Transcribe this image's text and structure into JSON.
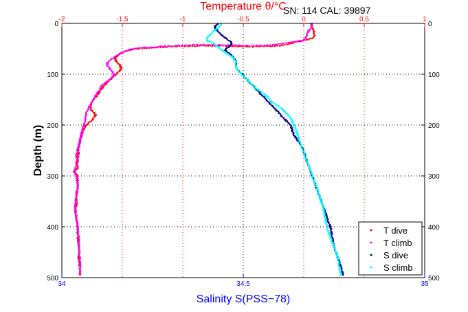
{
  "chart_data": {
    "type": "scatter",
    "title": "Temperature θ/°C",
    "annotation": "SN: 114  CAL: 39897",
    "xlabel": "Salinity S(PSS−78)",
    "ylabel": "Depth (m)",
    "axes": {
      "top_temperature": {
        "label": "Temperature θ/°C",
        "lim": [
          -2,
          1
        ],
        "ticks": [
          -2,
          -1.5,
          -1,
          -0.5,
          0,
          0.5,
          1
        ],
        "tick_labels": [
          "-2",
          "-1.5",
          "-1",
          "-0.5",
          "0",
          "0.5",
          "1"
        ],
        "color": "#ff0000"
      },
      "bottom_salinity": {
        "label": "Salinity S(PSS−78)",
        "lim": [
          34,
          35
        ],
        "ticks": [
          34,
          34.5,
          35
        ],
        "tick_labels": [
          "34",
          "34.5",
          "35"
        ],
        "color": "#0000ff"
      },
      "depth": {
        "label": "Depth (m)",
        "lim": [
          0,
          500
        ],
        "reversed": true,
        "ticks": [
          0,
          100,
          200,
          300,
          400,
          500
        ],
        "tick_labels": [
          "0",
          "100",
          "200",
          "300",
          "400",
          "500"
        ]
      }
    },
    "grid": true,
    "legend_position": "bottom-right",
    "series": [
      {
        "name": "T dive",
        "color": "#ff0000",
        "marker": ".",
        "axis": "temperature",
        "points": [
          [
            0.06,
            0
          ],
          [
            0.07,
            8
          ],
          [
            0.08,
            15
          ],
          [
            0.09,
            22
          ],
          [
            0.08,
            28
          ],
          [
            0.02,
            33
          ],
          [
            -0.05,
            36
          ],
          [
            -0.1,
            39
          ],
          [
            -0.15,
            42
          ],
          [
            -0.2,
            44
          ],
          [
            -0.3,
            45
          ],
          [
            -0.4,
            46
          ],
          [
            -0.55,
            45
          ],
          [
            -0.75,
            44
          ],
          [
            -1.0,
            45
          ],
          [
            -1.2,
            47
          ],
          [
            -1.4,
            50
          ],
          [
            -1.48,
            55
          ],
          [
            -1.52,
            60
          ],
          [
            -1.56,
            68
          ],
          [
            -1.55,
            75
          ],
          [
            -1.52,
            82
          ],
          [
            -1.51,
            90
          ],
          [
            -1.55,
            100
          ],
          [
            -1.6,
            110
          ],
          [
            -1.64,
            120
          ],
          [
            -1.68,
            130
          ],
          [
            -1.7,
            140
          ],
          [
            -1.74,
            150
          ],
          [
            -1.76,
            160
          ],
          [
            -1.76,
            170
          ],
          [
            -1.72,
            180
          ],
          [
            -1.75,
            190
          ],
          [
            -1.8,
            200
          ],
          [
            -1.83,
            215
          ],
          [
            -1.85,
            230
          ],
          [
            -1.86,
            250
          ],
          [
            -1.87,
            270
          ],
          [
            -1.87,
            285
          ],
          [
            -1.9,
            292
          ],
          [
            -1.87,
            300
          ],
          [
            -1.87,
            320
          ],
          [
            -1.88,
            340
          ],
          [
            -1.88,
            360
          ],
          [
            -1.89,
            370
          ],
          [
            -1.88,
            380
          ],
          [
            -1.87,
            400
          ],
          [
            -1.87,
            420
          ],
          [
            -1.86,
            440
          ],
          [
            -1.86,
            460
          ],
          [
            -1.85,
            480
          ],
          [
            -1.85,
            495
          ]
        ]
      },
      {
        "name": "T climb",
        "color": "#ff00ff",
        "marker": ".",
        "axis": "temperature",
        "points": [
          [
            0.07,
            0
          ],
          [
            0.06,
            8
          ],
          [
            0.04,
            15
          ],
          [
            0.03,
            22
          ],
          [
            0.02,
            28
          ],
          [
            0.0,
            33
          ],
          [
            -0.1,
            37
          ],
          [
            -0.2,
            41
          ],
          [
            -0.35,
            44
          ],
          [
            -0.6,
            43
          ],
          [
            -0.85,
            42
          ],
          [
            -1.0,
            43
          ],
          [
            -1.15,
            45
          ],
          [
            -1.35,
            48
          ],
          [
            -1.45,
            52
          ],
          [
            -1.5,
            58
          ],
          [
            -1.56,
            65
          ],
          [
            -1.6,
            72
          ],
          [
            -1.63,
            80
          ],
          [
            -1.6,
            90
          ],
          [
            -1.57,
            100
          ],
          [
            -1.6,
            110
          ],
          [
            -1.66,
            120
          ],
          [
            -1.7,
            135
          ],
          [
            -1.74,
            150
          ],
          [
            -1.78,
            165
          ],
          [
            -1.8,
            180
          ],
          [
            -1.82,
            200
          ],
          [
            -1.84,
            220
          ],
          [
            -1.86,
            240
          ],
          [
            -1.88,
            260
          ],
          [
            -1.88,
            280
          ],
          [
            -1.9,
            290
          ],
          [
            -1.88,
            300
          ],
          [
            -1.87,
            320
          ],
          [
            -1.88,
            340
          ],
          [
            -1.89,
            360
          ],
          [
            -1.88,
            380
          ],
          [
            -1.87,
            400
          ],
          [
            -1.86,
            420
          ],
          [
            -1.86,
            440
          ],
          [
            -1.85,
            460
          ],
          [
            -1.85,
            480
          ],
          [
            -1.85,
            495
          ]
        ]
      },
      {
        "name": "S dive",
        "color": "#00008b",
        "marker": ".",
        "axis": "salinity",
        "points": [
          [
            34.43,
            0
          ],
          [
            34.42,
            8
          ],
          [
            34.43,
            15
          ],
          [
            34.44,
            22
          ],
          [
            34.45,
            28
          ],
          [
            34.46,
            34
          ],
          [
            34.47,
            40
          ],
          [
            34.46,
            46
          ],
          [
            34.45,
            52
          ],
          [
            34.46,
            58
          ],
          [
            34.47,
            65
          ],
          [
            34.48,
            75
          ],
          [
            34.48,
            85
          ],
          [
            34.49,
            95
          ],
          [
            34.51,
            110
          ],
          [
            34.53,
            125
          ],
          [
            34.55,
            140
          ],
          [
            34.57,
            155
          ],
          [
            34.59,
            170
          ],
          [
            34.61,
            185
          ],
          [
            34.63,
            200
          ],
          [
            34.64,
            220
          ],
          [
            34.66,
            240
          ],
          [
            34.67,
            260
          ],
          [
            34.68,
            280
          ],
          [
            34.69,
            300
          ],
          [
            34.7,
            320
          ],
          [
            34.71,
            340
          ],
          [
            34.72,
            360
          ],
          [
            34.73,
            380
          ],
          [
            34.74,
            400
          ],
          [
            34.745,
            420
          ],
          [
            34.75,
            440
          ],
          [
            34.76,
            460
          ],
          [
            34.77,
            480
          ],
          [
            34.775,
            495
          ]
        ]
      },
      {
        "name": "S climb",
        "color": "#00ffff",
        "marker": ".",
        "axis": "salinity",
        "points": [
          [
            34.44,
            0
          ],
          [
            34.43,
            8
          ],
          [
            34.42,
            15
          ],
          [
            34.41,
            22
          ],
          [
            34.4,
            28
          ],
          [
            34.4,
            34
          ],
          [
            34.42,
            40
          ],
          [
            34.43,
            46
          ],
          [
            34.44,
            52
          ],
          [
            34.45,
            58
          ],
          [
            34.47,
            66
          ],
          [
            34.48,
            76
          ],
          [
            34.48,
            86
          ],
          [
            34.49,
            96
          ],
          [
            34.51,
            110
          ],
          [
            34.53,
            125
          ],
          [
            34.56,
            140
          ],
          [
            34.58,
            155
          ],
          [
            34.61,
            170
          ],
          [
            34.63,
            185
          ],
          [
            34.64,
            200
          ],
          [
            34.65,
            220
          ],
          [
            34.66,
            240
          ],
          [
            34.67,
            260
          ],
          [
            34.68,
            280
          ],
          [
            34.69,
            300
          ],
          [
            34.7,
            320
          ],
          [
            34.71,
            340
          ],
          [
            34.72,
            360
          ],
          [
            34.725,
            380
          ],
          [
            34.73,
            400
          ],
          [
            34.74,
            420
          ],
          [
            34.75,
            440
          ],
          [
            34.76,
            460
          ],
          [
            34.765,
            480
          ],
          [
            34.77,
            495
          ]
        ]
      }
    ]
  }
}
